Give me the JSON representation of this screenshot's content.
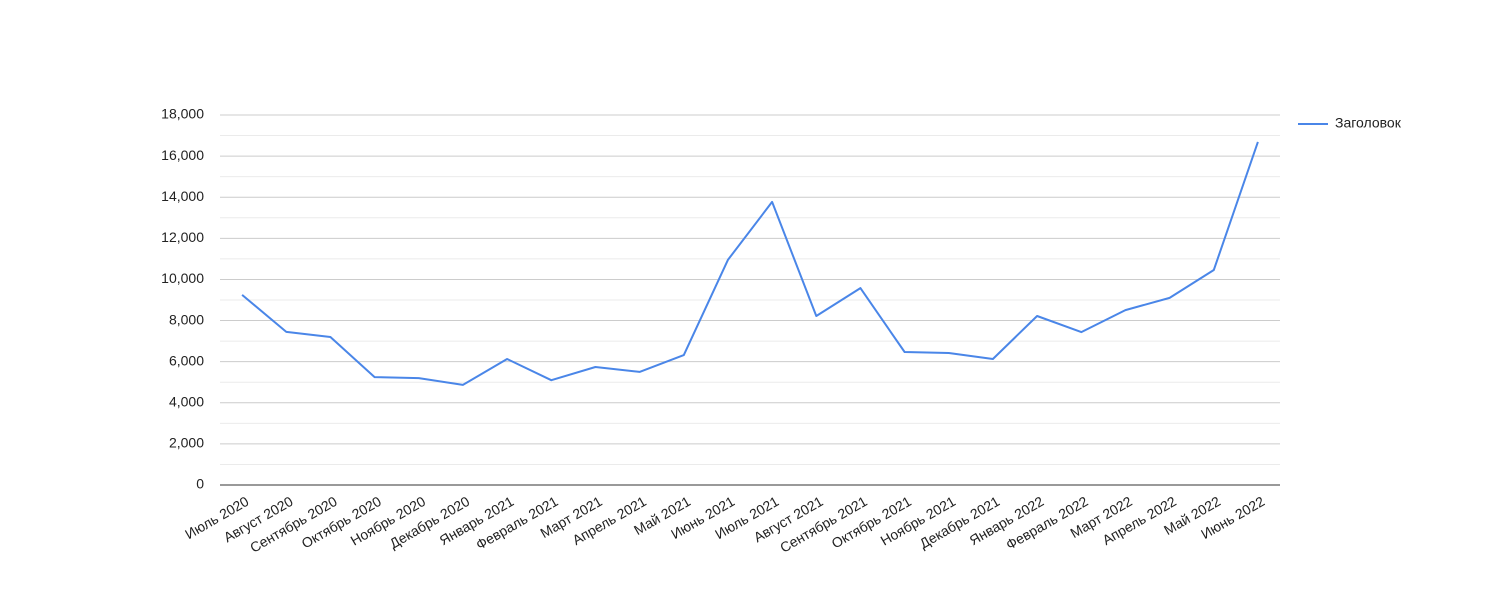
{
  "chart_data": {
    "type": "line",
    "categories": [
      "Июль 2020",
      "Август 2020",
      "Сентябрь 2020",
      "Октябрь 2020",
      "Ноябрь 2020",
      "Декабрь 2020",
      "Январь 2021",
      "Февраль 2021",
      "Март 2021",
      "Апрель 2021",
      "Май 2021",
      "Июнь 2021",
      "Июль 2021",
      "Август 2021",
      "Сентябрь 2021",
      "Октябрь 2021",
      "Ноябрь 2021",
      "Декабрь 2021",
      "Январь 2022",
      "Февраль 2022",
      "Март 2022",
      "Апрель 2022",
      "Май 2022",
      "Июнь 2022"
    ],
    "series": [
      {
        "name": "Заголовок",
        "color": "#4a86e8",
        "values": [
          9250,
          7450,
          7200,
          5250,
          5200,
          4870,
          6130,
          5100,
          5740,
          5500,
          6320,
          10950,
          13770,
          8220,
          9580,
          6470,
          6420,
          6130,
          8220,
          7440,
          8510,
          9100,
          10460,
          16690
        ]
      }
    ],
    "ylim": [
      0,
      18000
    ],
    "yticks": [
      0,
      {
        "value": 2000,
        "label": "2,000"
      },
      {
        "value": 4000,
        "label": "4,000"
      },
      {
        "value": 6000,
        "label": "6,000"
      },
      {
        "value": 8000,
        "label": "8,000"
      },
      {
        "value": 10000,
        "label": "10,000"
      },
      {
        "value": 12000,
        "label": "12,000"
      },
      {
        "value": 14000,
        "label": "14,000"
      },
      {
        "value": 16000,
        "label": "16,000"
      },
      {
        "value": 18000,
        "label": "18,000"
      }
    ],
    "grid": true,
    "legend": "right"
  }
}
